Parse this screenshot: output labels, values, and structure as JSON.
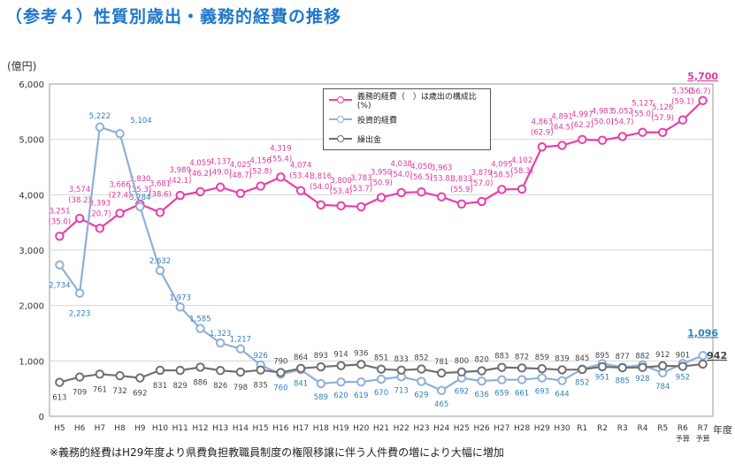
{
  "title": "（参考４）性質別歳出・義務的経費の推移",
  "note": "※義務的経費はH29年度より県費負担教職員制度の権限移譲に伴う人件費の増により大幅に増加",
  "chart_data": {
    "type": "line",
    "ylabel": "(億円)",
    "xlabel": "年度",
    "ylim": [
      0,
      6000
    ],
    "yticks": [
      "0",
      "1,000",
      "2,000",
      "3,000",
      "4,000",
      "5,000",
      "6,000"
    ],
    "categories": [
      "H5",
      "H6",
      "H7",
      "H8",
      "H9",
      "H10",
      "H11",
      "H12",
      "H13",
      "H14",
      "H15",
      "H16",
      "H17",
      "H18",
      "H19",
      "H20",
      "H21",
      "H22",
      "H23",
      "H24",
      "H25",
      "H26",
      "H27",
      "H28",
      "H29",
      "H30",
      "R1",
      "R2",
      "R3",
      "R4",
      "R5",
      "R6",
      "R7"
    ],
    "category_notes": {
      "R6": "予算",
      "R7": "予算"
    },
    "colors": {
      "mandatory": "#ea3fa8",
      "investment": "#8fb0d6",
      "transfer": "#707070",
      "mandatory_label": "#e0389c",
      "investment_label": "#2f7fc1",
      "transfer_label": "#444444"
    },
    "series": [
      {
        "name": "義務的経費（　）は歳出の構成比(%)",
        "key": "mandatory",
        "values": [
          3251,
          3574,
          3393,
          3666,
          3830,
          3681,
          3989,
          4055,
          4137,
          4025,
          4156,
          4319,
          4074,
          3816,
          3800,
          3783,
          3950,
          4038,
          4050,
          3963,
          3833,
          3879,
          4095,
          4102,
          4863,
          4891,
          4997,
          4983,
          5052,
          5127,
          5126,
          5350,
          5700
        ],
        "labels": [
          "3,251",
          "3,574",
          "3,393",
          "3,666",
          "3,830",
          "3,681",
          "3,989",
          "4,055",
          "4,137",
          "4,025",
          "4,156",
          "4,319",
          "4,074",
          "3,816",
          "3,800",
          "3,783",
          "3,950",
          "4,038",
          "4,050",
          "3,963",
          "3,833",
          "3,879",
          "4,095",
          "4,102",
          "4,863",
          "4,891",
          "4,997",
          "4,983",
          "5,052",
          "5,127",
          "5,126",
          "5,350",
          "5,700"
        ],
        "ratios": [
          "(35.0)",
          "(38.2)",
          "(20.7)",
          "(27.4)",
          "(35.3)",
          "(38.6)",
          "(42.1)",
          "(46.2)",
          "(49.0)",
          "(48.7)",
          "(52.8)",
          "(55.4)",
          "(53.4)",
          "(54.0)",
          "(53.4)",
          "(53.7)",
          "(50.9)",
          "(54.0)",
          "(56.5)",
          "(53.8)",
          "(55.9)",
          "(57.0)",
          "(58.5)",
          "(58.3)",
          "(62.9)",
          "(64.5)",
          "(62.2)",
          "(50.0)",
          "(54.7)",
          "(55.0)",
          "(57.9)",
          "(59.1)",
          "(56.7)"
        ]
      },
      {
        "name": "投資的経費",
        "key": "investment",
        "values": [
          2734,
          2223,
          5222,
          5104,
          3784,
          2632,
          1973,
          1585,
          1323,
          1217,
          926,
          760,
          841,
          589,
          620,
          619,
          670,
          713,
          629,
          465,
          692,
          636,
          659,
          661,
          693,
          644,
          852,
          951,
          885,
          928,
          784,
          952,
          1096
        ],
        "labels": [
          "2,734",
          "2,223",
          "5,222",
          "5,104",
          "3,784",
          "2,632",
          "1,973",
          "1,585",
          "1,323",
          "1,217",
          "926",
          "760",
          "841",
          "589",
          "620",
          "619",
          "670",
          "713",
          "629",
          "465",
          "692",
          "636",
          "659",
          "661",
          "693",
          "644",
          "852",
          "951",
          "885",
          "928",
          "784",
          "952",
          "1,096"
        ]
      },
      {
        "name": "繰出金",
        "key": "transfer",
        "values": [
          613,
          709,
          761,
          732,
          692,
          831,
          829,
          886,
          826,
          798,
          835,
          790,
          864,
          893,
          914,
          936,
          851,
          833,
          852,
          781,
          800,
          820,
          883,
          872,
          859,
          839,
          845,
          895,
          877,
          882,
          912,
          901,
          942
        ],
        "labels": [
          "613",
          "709",
          "761",
          "732",
          "692",
          "831",
          "829",
          "886",
          "826",
          "798",
          "835",
          "790",
          "864",
          "893",
          "914",
          "936",
          "851",
          "833",
          "852",
          "781",
          "800",
          "820",
          "883",
          "872",
          "859",
          "839",
          "845",
          "895",
          "877",
          "882",
          "912",
          "901",
          "942"
        ]
      }
    ],
    "legend_position": "top-center"
  }
}
